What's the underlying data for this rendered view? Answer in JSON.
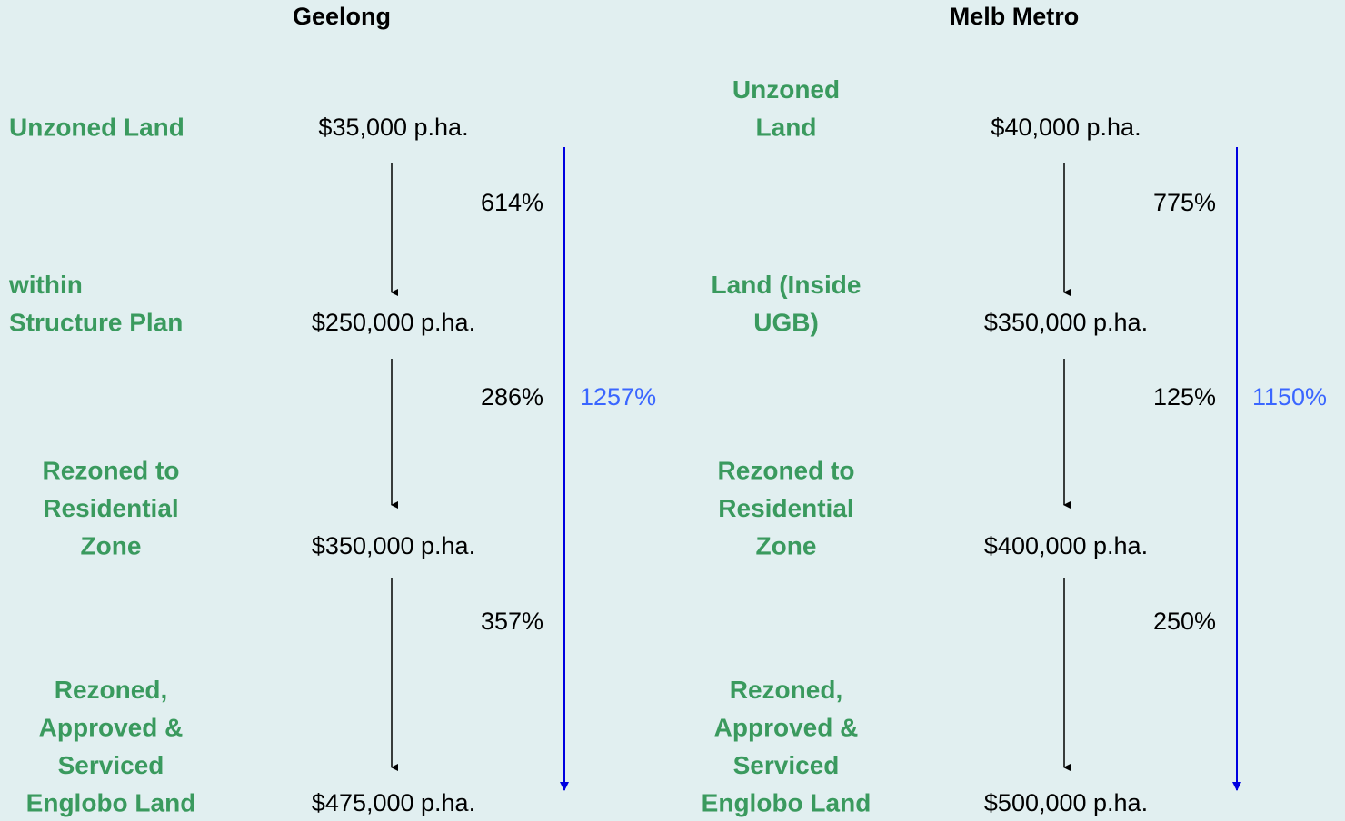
{
  "columns": [
    {
      "title": "Geelong",
      "stages": [
        {
          "label": [
            "Unzoned Land"
          ],
          "price": "$35,000 p.ha."
        },
        {
          "label": [
            "within",
            "Structure Plan"
          ],
          "price": "$250,000 p.ha."
        },
        {
          "label": [
            "Rezoned to",
            "Residential",
            "Zone"
          ],
          "price": "$350,000 p.ha."
        },
        {
          "label": [
            "Rezoned,",
            "Approved &",
            "Serviced",
            "Englobo Land"
          ],
          "price": "$475,000 p.ha."
        }
      ],
      "steps": [
        "614%",
        "286%",
        "357%"
      ],
      "total": "1257%"
    },
    {
      "title": "Melb Metro",
      "stages": [
        {
          "label": [
            "Unzoned",
            "Land"
          ],
          "price": "$40,000 p.ha."
        },
        {
          "label": [
            "Land (Inside",
            "UGB)"
          ],
          "price": "$350,000 p.ha."
        },
        {
          "label": [
            "Rezoned to",
            "Residential",
            "Zone"
          ],
          "price": "$400,000 p.ha."
        },
        {
          "label": [
            "Rezoned,",
            "Approved &",
            "Serviced",
            "Englobo Land"
          ],
          "price": "$500,000 p.ha."
        }
      ],
      "steps": [
        "775%",
        "125%",
        "250%"
      ],
      "total": "1150%"
    }
  ]
}
